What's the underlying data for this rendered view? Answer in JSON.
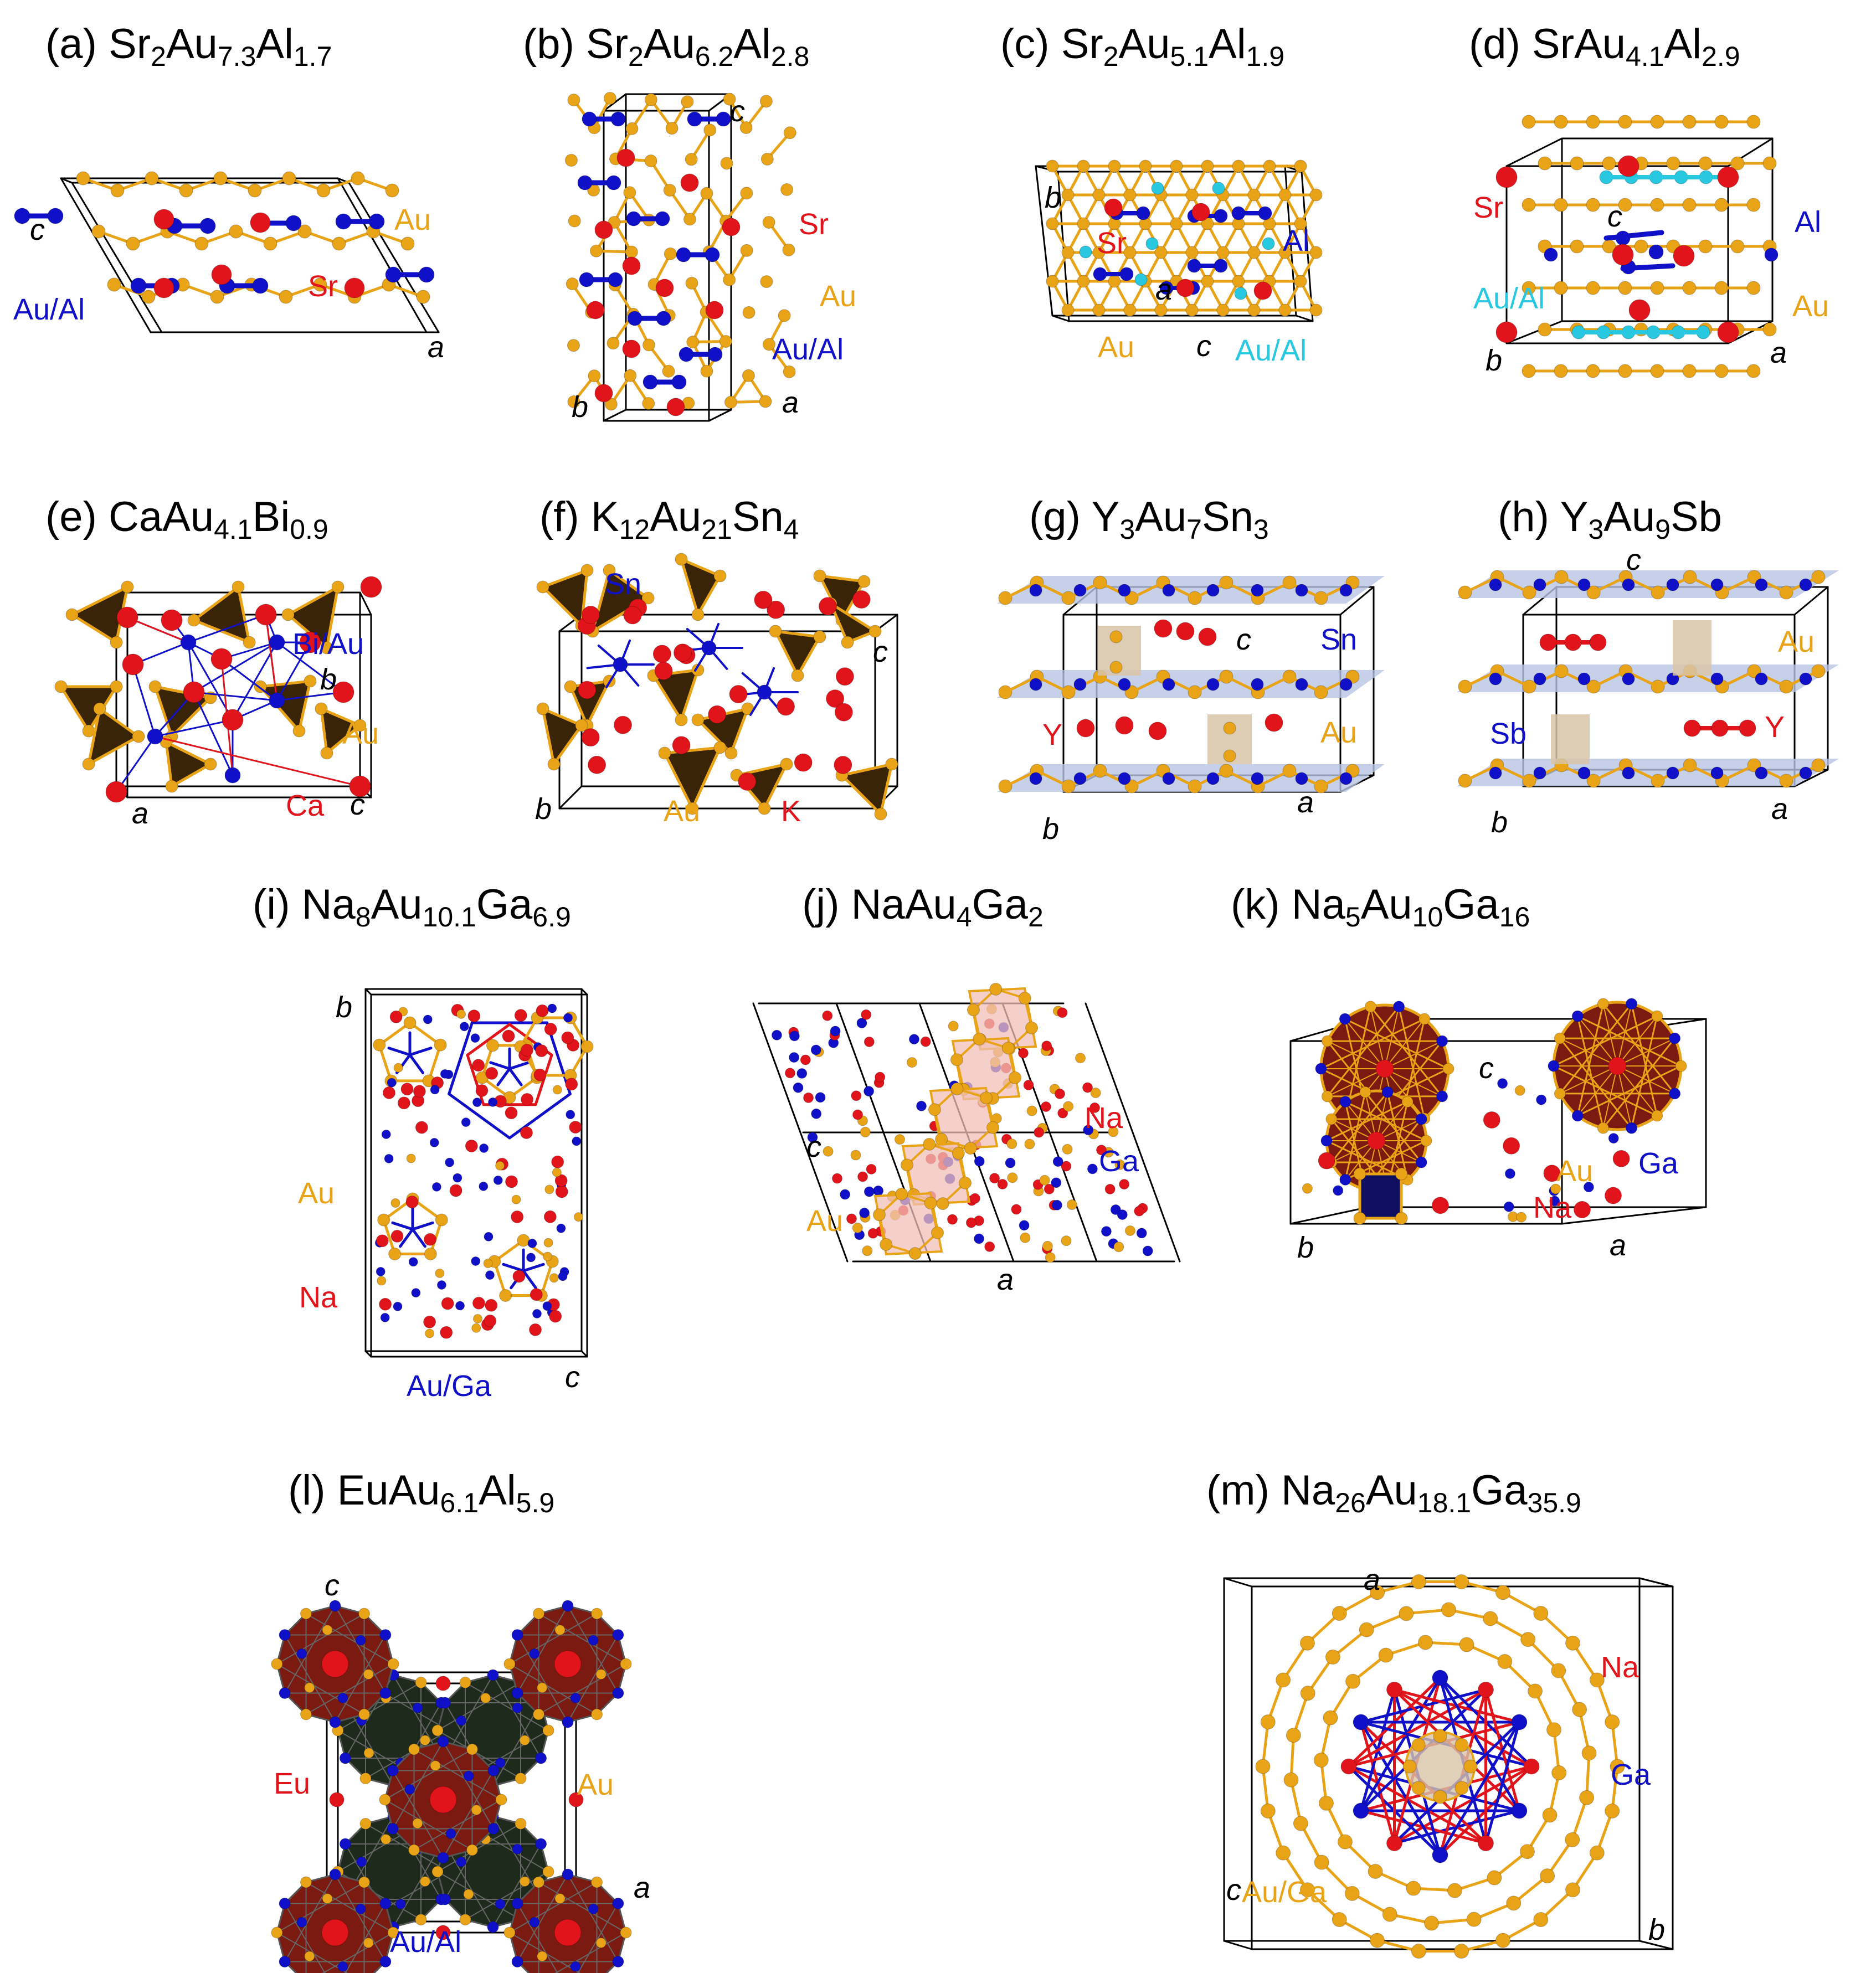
{
  "colors": {
    "au": "#e8a317",
    "sr": "#e0141a",
    "al": "#1010c8",
    "mix_cyan": "#28c8e0",
    "poly_dark": "#3a2408",
    "poly_brown": "#7a1a10",
    "poly_green": "#1e2a1c",
    "layer_blue": "#b8c4e4",
    "box_tan": "#d8c4a8",
    "box_pink": "#f2c0b8",
    "navy": "#101060"
  },
  "panels": [
    {
      "id": "a",
      "prefix": "(a) ",
      "formula": [
        [
          "Sr",
          ""
        ],
        [
          "",
          "2"
        ],
        [
          "Au",
          ""
        ],
        [
          "",
          "7.3"
        ],
        [
          "Al",
          ""
        ],
        [
          "",
          "1.7"
        ]
      ],
      "species": [
        {
          "text": "Au",
          "color": "#e8a317"
        },
        {
          "text": "Sr",
          "color": "#e0141a"
        },
        {
          "text": "Au/Al",
          "color": "#1010c8"
        }
      ],
      "axes": [
        "c",
        "a"
      ]
    },
    {
      "id": "b",
      "prefix": "(b) ",
      "formula": [
        [
          "Sr",
          ""
        ],
        [
          "",
          "2"
        ],
        [
          "Au",
          ""
        ],
        [
          "",
          "6.2"
        ],
        [
          "Al",
          ""
        ],
        [
          "",
          "2.8"
        ]
      ],
      "species": [
        {
          "text": "Sr",
          "color": "#e0141a"
        },
        {
          "text": "Au",
          "color": "#e8a317"
        },
        {
          "text": "Au/Al",
          "color": "#1010c8"
        }
      ],
      "axes": [
        "c",
        "b",
        "a"
      ]
    },
    {
      "id": "c",
      "prefix": "(c) ",
      "formula": [
        [
          "Sr",
          ""
        ],
        [
          "",
          "2"
        ],
        [
          "Au",
          ""
        ],
        [
          "",
          "5.1"
        ],
        [
          "Al",
          ""
        ],
        [
          "",
          "1.9"
        ]
      ],
      "species": [
        {
          "text": "Sr",
          "color": "#e0141a"
        },
        {
          "text": "Al",
          "color": "#1010c8"
        },
        {
          "text": "Au",
          "color": "#e8a317"
        },
        {
          "text": "Au/Al",
          "color": "#28c8e0"
        }
      ],
      "axes": [
        "b",
        "a",
        "c"
      ]
    },
    {
      "id": "d",
      "prefix": "(d) ",
      "formula": [
        [
          "SrAu",
          ""
        ],
        [
          "",
          "4.1"
        ],
        [
          "Al",
          ""
        ],
        [
          "",
          "2.9"
        ]
      ],
      "species": [
        {
          "text": "Sr",
          "color": "#e0141a"
        },
        {
          "text": "Al",
          "color": "#1010c8"
        },
        {
          "text": "Au/Al",
          "color": "#28c8e0"
        },
        {
          "text": "Au",
          "color": "#e8a317"
        }
      ],
      "axes": [
        "c",
        "b",
        "a"
      ]
    },
    {
      "id": "e",
      "prefix": "(e) ",
      "formula": [
        [
          "CaAu",
          ""
        ],
        [
          "",
          "4.1"
        ],
        [
          "Bi",
          ""
        ],
        [
          "",
          "0.9"
        ]
      ],
      "species": [
        {
          "text": "Bi/Au",
          "color": "#1010c8"
        },
        {
          "text": "Au",
          "color": "#e8a317"
        },
        {
          "text": "Ca",
          "color": "#e0141a"
        }
      ],
      "axes": [
        "b",
        "a",
        "c"
      ]
    },
    {
      "id": "f",
      "prefix": "(f) ",
      "formula": [
        [
          "K",
          ""
        ],
        [
          "",
          "12"
        ],
        [
          "Au",
          ""
        ],
        [
          "",
          "21"
        ],
        [
          "Sn",
          ""
        ],
        [
          "",
          "4"
        ]
      ],
      "species": [
        {
          "text": "Sn",
          "color": "#1010c8"
        },
        {
          "text": "Au",
          "color": "#e8a317"
        },
        {
          "text": "K",
          "color": "#e0141a"
        }
      ],
      "axes": [
        "c",
        "b"
      ]
    },
    {
      "id": "g",
      "prefix": "(g) ",
      "formula": [
        [
          "Y",
          ""
        ],
        [
          "",
          "3"
        ],
        [
          "Au",
          ""
        ],
        [
          "",
          "7"
        ],
        [
          "Sn",
          ""
        ],
        [
          "",
          "3"
        ]
      ],
      "species": [
        {
          "text": "Sn",
          "color": "#1010c8"
        },
        {
          "text": "Y",
          "color": "#e0141a"
        },
        {
          "text": "Au",
          "color": "#e8a317"
        }
      ],
      "axes": [
        "c",
        "b",
        "a"
      ]
    },
    {
      "id": "h",
      "prefix": "(h) ",
      "formula": [
        [
          "Y",
          ""
        ],
        [
          "",
          "3"
        ],
        [
          "Au",
          ""
        ],
        [
          "",
          "9"
        ],
        [
          "Sb",
          ""
        ]
      ],
      "species": [
        {
          "text": "Au",
          "color": "#e8a317"
        },
        {
          "text": "Sb",
          "color": "#1010c8"
        },
        {
          "text": "Y",
          "color": "#e0141a"
        }
      ],
      "axes": [
        "c",
        "b",
        "a"
      ]
    },
    {
      "id": "i",
      "prefix": "(i)  ",
      "formula": [
        [
          "Na",
          ""
        ],
        [
          "",
          "8"
        ],
        [
          "Au",
          ""
        ],
        [
          "",
          "10.1"
        ],
        [
          "Ga",
          ""
        ],
        [
          "",
          "6.9"
        ]
      ],
      "species": [
        {
          "text": "Au",
          "color": "#e8a317"
        },
        {
          "text": "Na",
          "color": "#e0141a"
        },
        {
          "text": "Au/Ga",
          "color": "#1010c8"
        }
      ],
      "axes": [
        "b",
        "c"
      ]
    },
    {
      "id": "j",
      "prefix": "(j)  ",
      "formula": [
        [
          "NaAu",
          ""
        ],
        [
          "",
          "4"
        ],
        [
          "Ga",
          ""
        ],
        [
          "",
          "2"
        ]
      ],
      "species": [
        {
          "text": "Na",
          "color": "#e0141a"
        },
        {
          "text": "Ga",
          "color": "#1010c8"
        },
        {
          "text": "Au",
          "color": "#e8a317"
        }
      ],
      "axes": [
        "c",
        "a"
      ]
    },
    {
      "id": "k",
      "prefix": "(k) ",
      "formula": [
        [
          "Na",
          ""
        ],
        [
          "",
          "5"
        ],
        [
          "Au",
          ""
        ],
        [
          "",
          "10"
        ],
        [
          "Ga",
          ""
        ],
        [
          "",
          "16"
        ]
      ],
      "species": [
        {
          "text": "Au",
          "color": "#e8a317"
        },
        {
          "text": "Ga",
          "color": "#1010c8"
        },
        {
          "text": "Na",
          "color": "#e0141a"
        }
      ],
      "axes": [
        "c",
        "b",
        "a"
      ]
    },
    {
      "id": "l",
      "prefix": "(l) ",
      "formula": [
        [
          "EuAu",
          ""
        ],
        [
          "",
          "6.1"
        ],
        [
          "Al",
          ""
        ],
        [
          "",
          "5.9"
        ]
      ],
      "species": [
        {
          "text": "Eu",
          "color": "#e0141a"
        },
        {
          "text": "Au",
          "color": "#e8a317"
        },
        {
          "text": "Au/Al",
          "color": "#1010c8"
        }
      ],
      "axes": [
        "c",
        "a"
      ]
    },
    {
      "id": "m",
      "prefix": "(m) ",
      "formula": [
        [
          "Na",
          ""
        ],
        [
          "",
          "26"
        ],
        [
          "Au",
          ""
        ],
        [
          "",
          "18.1"
        ],
        [
          "Ga",
          ""
        ],
        [
          "",
          "35.9"
        ]
      ],
      "species": [
        {
          "text": "Na",
          "color": "#e0141a"
        },
        {
          "text": "Ga",
          "color": "#1010c8"
        },
        {
          "text": "Au/Ga",
          "color": "#e8a317"
        }
      ],
      "axes": [
        "a",
        "c",
        "b"
      ]
    }
  ]
}
